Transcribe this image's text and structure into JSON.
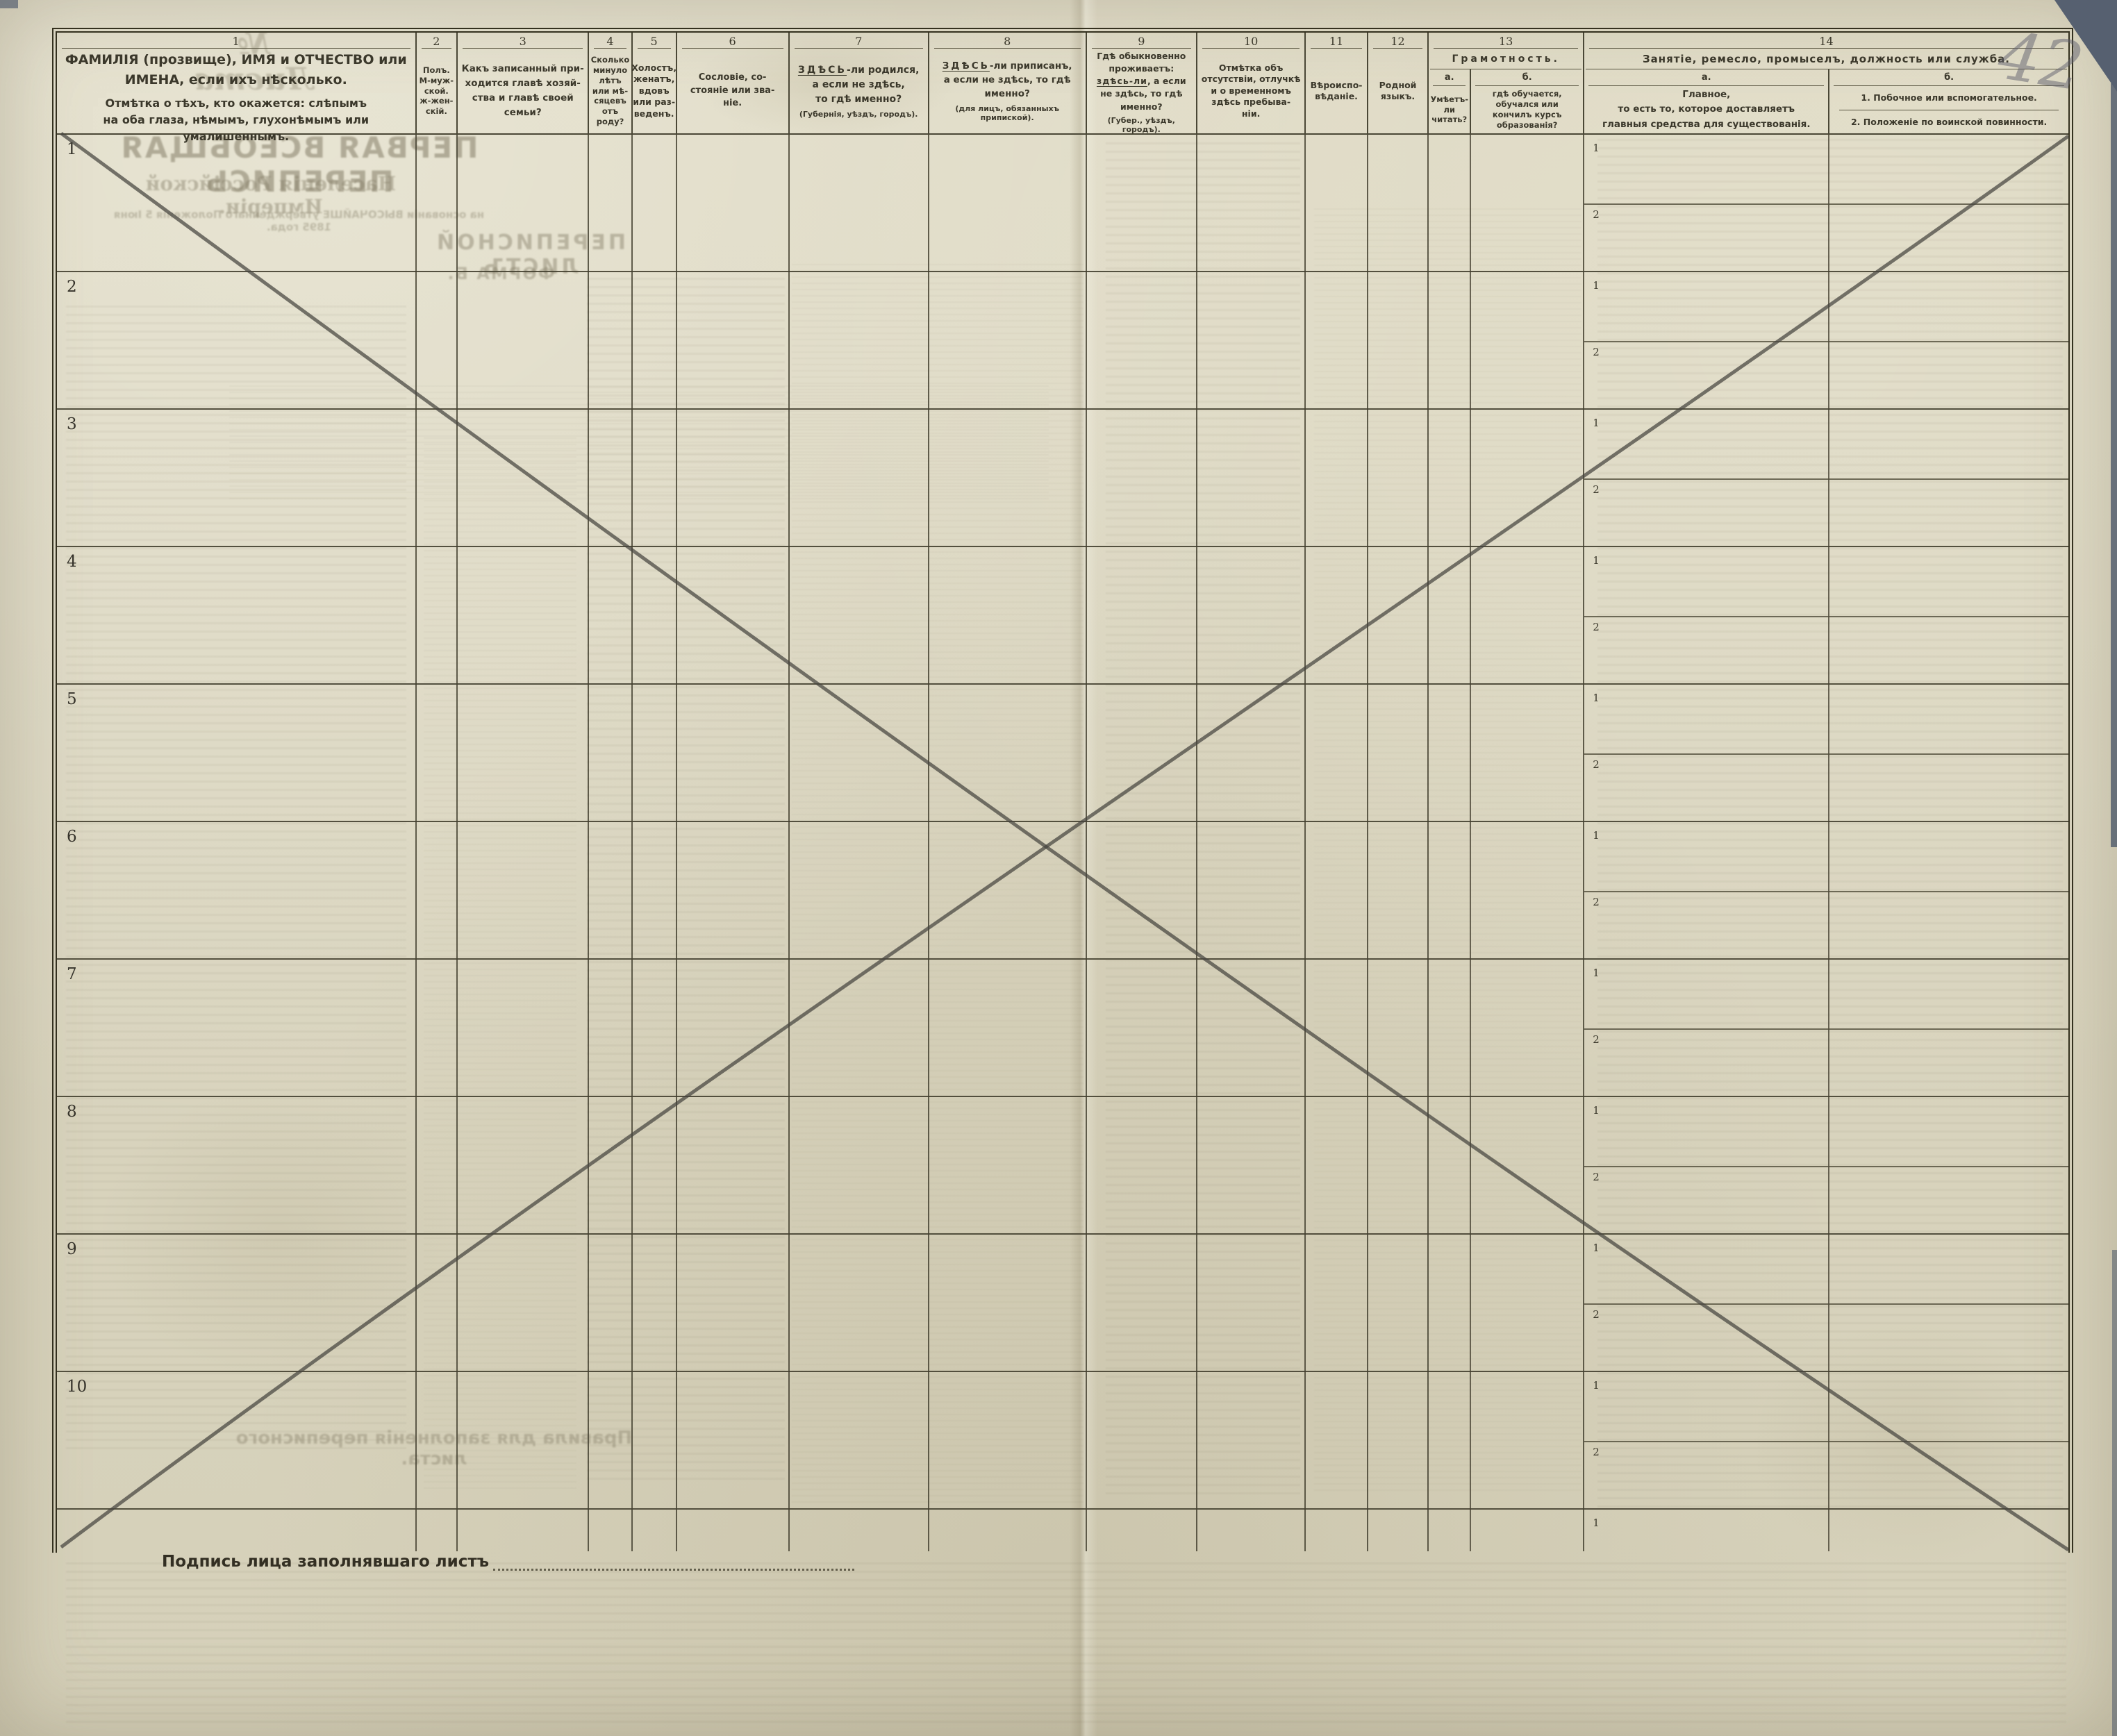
{
  "page": {
    "handwritten_sheet_number": "42",
    "signature_label": "Подпись лица заполнявшаго листъ",
    "colors": {
      "paper": "#dad5bf",
      "table_lines": "#4a4736",
      "printed_ink": "#3b382b",
      "pencil_cross": "#45443e",
      "scan_background": "#59616e"
    }
  },
  "bleed_through": {
    "sheet_no": "№ Листа",
    "title_main": "ПЕРВАЯ ВСЕОБЩАЯ ПЕРЕПИСЬ",
    "title_sub": "Населенія Россійской Имперіи.",
    "title_note": "на основаніи ВЫСОЧАЙШЕ утвержденнаго Положенія 5 Іюня 1895 года.",
    "sheet_title": "ПЕРЕПИСНОЙ ЛИСТЪ",
    "form_label": "ФОРМА Б.",
    "rules_title": "Правила для заполненія переписного листа."
  },
  "table": {
    "row_numbers": [
      "1",
      "2",
      "3",
      "4",
      "5",
      "6",
      "7",
      "8",
      "9",
      "10"
    ],
    "subrow_labels": [
      "1",
      "2"
    ],
    "columns": [
      {
        "num": "1",
        "main": "ФАМИЛІЯ (прозвище), ИМЯ и ОТЧЕСТВО или\nИМЕНА, если ихъ нѣсколько.",
        "sub": "Отмѣтка о тѣхъ, кто окажется: слѣпымъ\nна оба глаза, нѣмымъ, глухонѣмымъ или\nумалишеннымъ."
      },
      {
        "num": "2",
        "text": "Полъ.\nМ-муж-\nской.\nж-жен-\nскій."
      },
      {
        "num": "3",
        "text": "Какъ записанный при-\nходится главѣ хозяй-\nства и главѣ своей\nсемьи?"
      },
      {
        "num": "4",
        "text": "Сколько\nминуло\nлѣтъ\nили мѣ-\nсяцевъ\nотъ роду?"
      },
      {
        "num": "5",
        "text": "Холостъ,\nженатъ,\nвдовъ\nили раз-\nведенъ."
      },
      {
        "num": "6",
        "text": "Сословіе, со-\nстояніе или зва-\nніе."
      },
      {
        "num": "7",
        "kw": "ЗДѢСЬ",
        "after": "-ли родился,",
        "rest": "а если не здѣсь,\nто гдѣ именно?",
        "note": "(Губернія, уѣздъ, городъ)."
      },
      {
        "num": "8",
        "kw": "ЗДѢСЬ",
        "after": "-ли приписанъ,",
        "rest": "а если не здѣсь, то гдѣ\nименно?",
        "note": "(для лицъ, обязанныхъ\nприпиской)."
      },
      {
        "num": "9",
        "line1": "Гдѣ обыкновенно\nпроживаетъ:",
        "kw": "здѣсь-ли",
        "after": ", а если",
        "rest": "не здѣсь, то гдѣ\nименно?",
        "note": "(Губер., уѣздъ, городъ)."
      },
      {
        "num": "10",
        "text": "Отмѣтка объ\nотсутствіи, отлучкѣ\nи о временномъ\nздѣсь пребыва-\nніи."
      },
      {
        "num": "11",
        "text": "Вѣроиспо-\nвѣданіе."
      },
      {
        "num": "12",
        "text": "Родной\nязыкъ."
      },
      {
        "num": "13",
        "title": "Грамотность.",
        "a_label": "а.",
        "b_label": "б.",
        "a_text": "Умѣетъ-\nли\nчитать?",
        "b_text": "гдѣ обучается,\nобучался или\nкончилъ курсъ\nобразованія?"
      },
      {
        "num": "14",
        "title": "Занятіе, ремесло, промыселъ, должность или служба.",
        "a_label": "а.",
        "b_label": "б.",
        "a_text": "Главное,\nто есть то, которое доставляетъ\nглавныя средства для существованія.",
        "b_item1": "1. Побочное или вспомогательное.",
        "b_item2": "2. Положеніе по воинской повинности."
      }
    ]
  }
}
